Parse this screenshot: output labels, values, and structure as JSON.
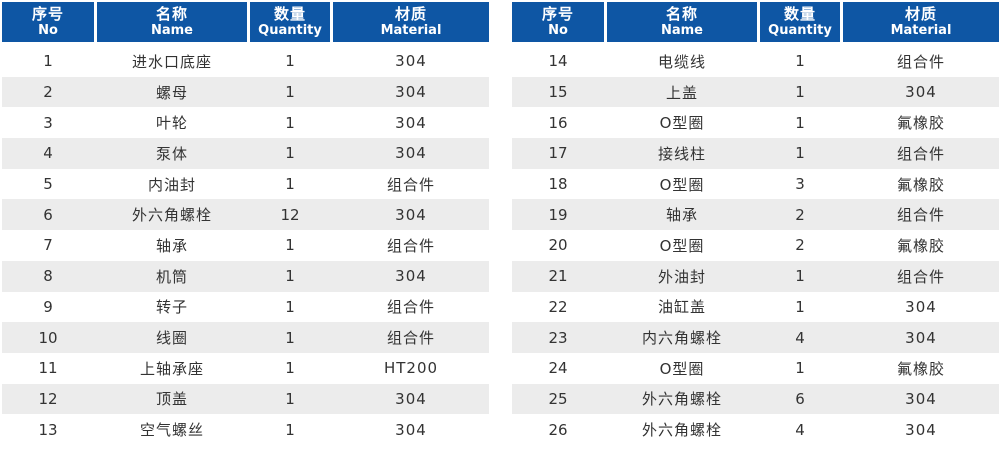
{
  "theme": {
    "header_bg": "#0E56A4",
    "header_text": "#FFFFFF",
    "row_bg": "#FFFFFF",
    "row_alt_bg": "#ECECEC",
    "body_text": "#333333"
  },
  "tables": [
    {
      "name": "parts-table-left",
      "columns": [
        {
          "zh": "序号",
          "en": "No"
        },
        {
          "zh": "名称",
          "en": "Name"
        },
        {
          "zh": "数量",
          "en": "Quantity"
        },
        {
          "zh": "材质",
          "en": "Material"
        }
      ],
      "rows": [
        {
          "no": "1",
          "name": "进水口底座",
          "qty": "1",
          "material": "304"
        },
        {
          "no": "2",
          "name": "螺母",
          "qty": "1",
          "material": "304"
        },
        {
          "no": "3",
          "name": "叶轮",
          "qty": "1",
          "material": "304"
        },
        {
          "no": "4",
          "name": "泵体",
          "qty": "1",
          "material": "304"
        },
        {
          "no": "5",
          "name": "内油封",
          "qty": "1",
          "material": "组合件"
        },
        {
          "no": "6",
          "name": "外六角螺栓",
          "qty": "12",
          "material": "304"
        },
        {
          "no": "7",
          "name": "轴承",
          "qty": "1",
          "material": "组合件"
        },
        {
          "no": "8",
          "name": "机筒",
          "qty": "1",
          "material": "304"
        },
        {
          "no": "9",
          "name": "转子",
          "qty": "1",
          "material": "组合件"
        },
        {
          "no": "10",
          "name": "线圈",
          "qty": "1",
          "material": "组合件"
        },
        {
          "no": "11",
          "name": "上轴承座",
          "qty": "1",
          "material": "HT200"
        },
        {
          "no": "12",
          "name": "顶盖",
          "qty": "1",
          "material": "304"
        },
        {
          "no": "13",
          "name": "空气螺丝",
          "qty": "1",
          "material": "304"
        }
      ]
    },
    {
      "name": "parts-table-right",
      "columns": [
        {
          "zh": "序号",
          "en": "No"
        },
        {
          "zh": "名称",
          "en": "Name"
        },
        {
          "zh": "数量",
          "en": "Quantity"
        },
        {
          "zh": "材质",
          "en": "Material"
        }
      ],
      "rows": [
        {
          "no": "14",
          "name": "电缆线",
          "qty": "1",
          "material": "组合件"
        },
        {
          "no": "15",
          "name": "上盖",
          "qty": "1",
          "material": "304"
        },
        {
          "no": "16",
          "name": "O型圈",
          "qty": "1",
          "material": "氟橡胶"
        },
        {
          "no": "17",
          "name": "接线柱",
          "qty": "1",
          "material": "组合件"
        },
        {
          "no": "18",
          "name": "O型圈",
          "qty": "3",
          "material": "氟橡胶"
        },
        {
          "no": "19",
          "name": "轴承",
          "qty": "2",
          "material": "组合件"
        },
        {
          "no": "20",
          "name": "O型圈",
          "qty": "2",
          "material": "氟橡胶"
        },
        {
          "no": "21",
          "name": "外油封",
          "qty": "1",
          "material": "组合件"
        },
        {
          "no": "22",
          "name": "油缸盖",
          "qty": "1",
          "material": "304"
        },
        {
          "no": "23",
          "name": "内六角螺栓",
          "qty": "4",
          "material": "304"
        },
        {
          "no": "24",
          "name": "O型圈",
          "qty": "1",
          "material": "氟橡胶"
        },
        {
          "no": "25",
          "name": "外六角螺栓",
          "qty": "6",
          "material": "304"
        },
        {
          "no": "26",
          "name": "外六角螺栓",
          "qty": "4",
          "material": "304"
        }
      ]
    }
  ]
}
